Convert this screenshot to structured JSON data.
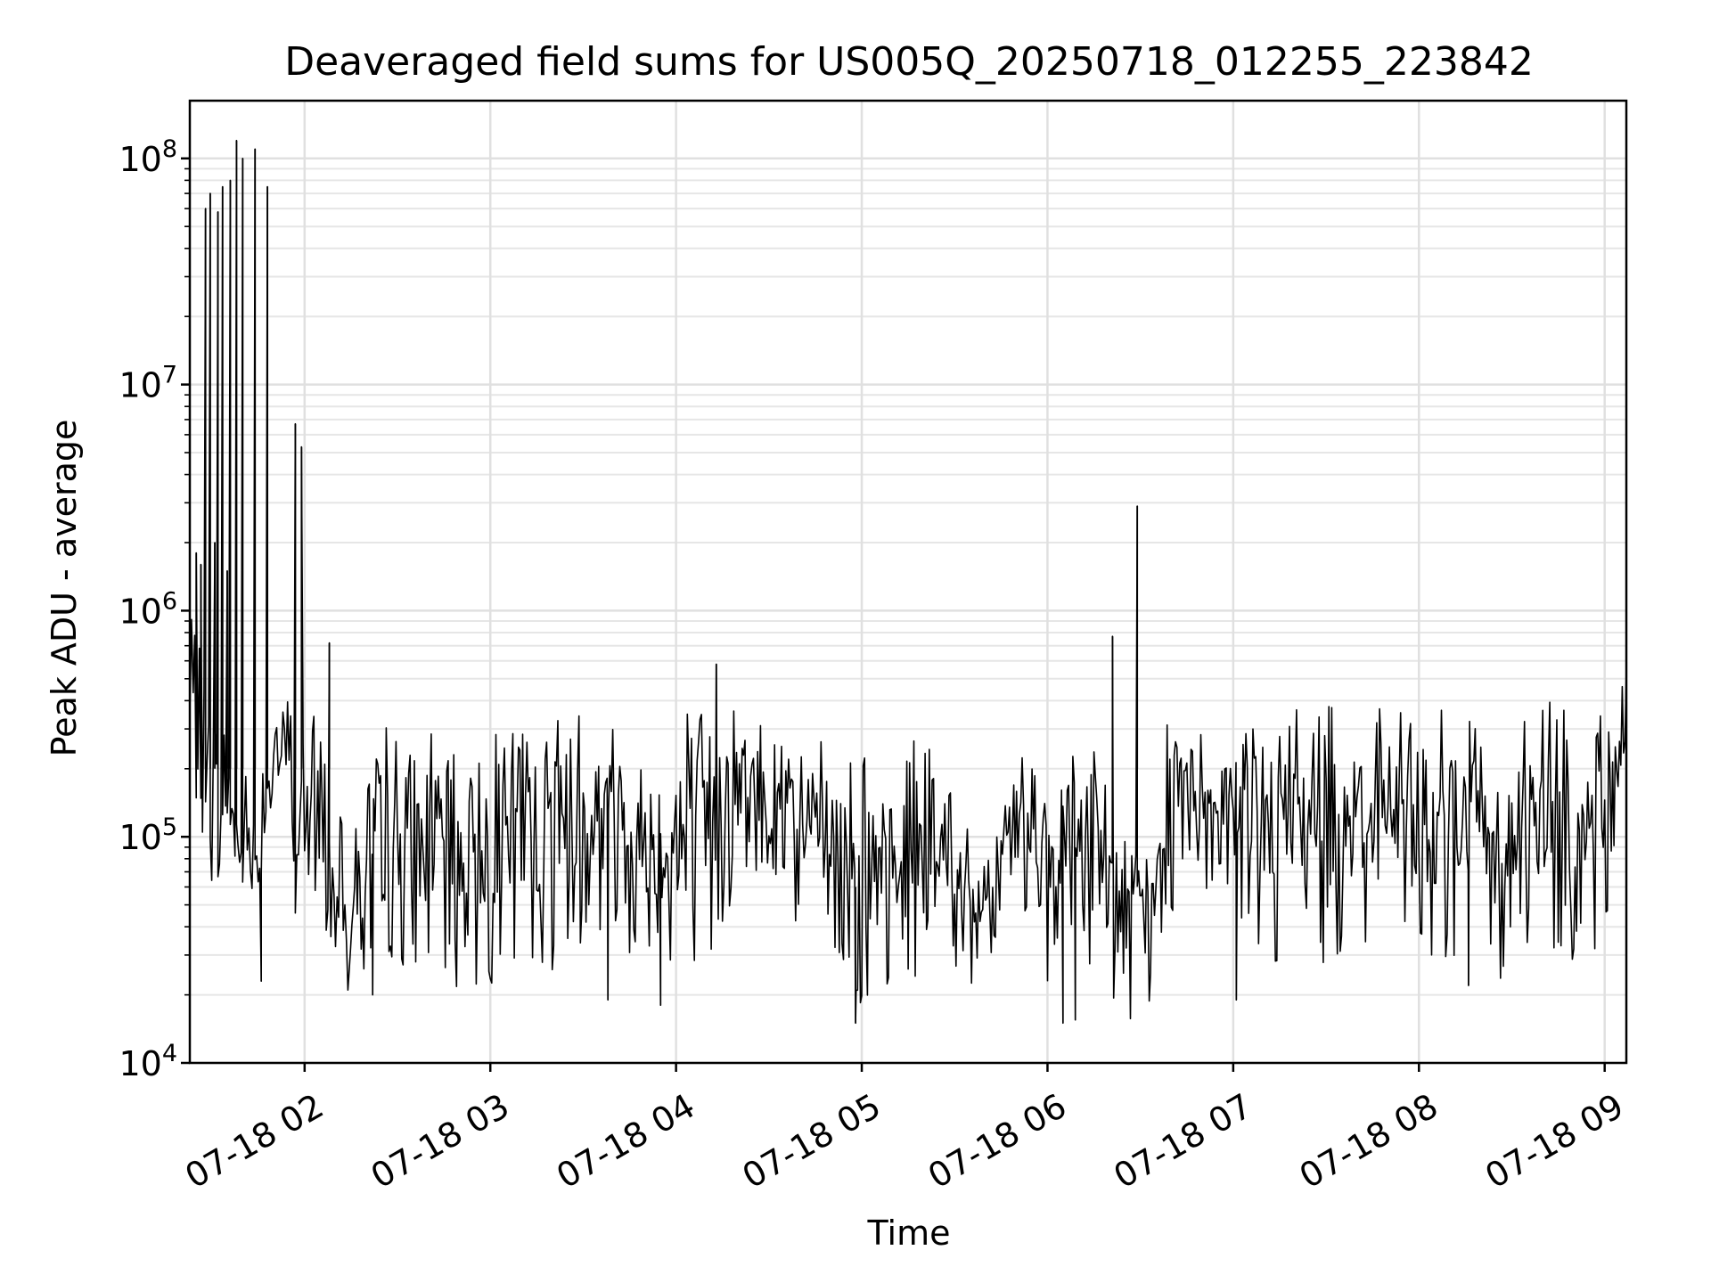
{
  "chart_data": {
    "type": "line",
    "title": "Deaveraged field sums for US005Q_20250718_012255_223842",
    "xlabel": "Time",
    "ylabel": "Peak ADU - average",
    "yscale": "log",
    "ylim": [
      10000,
      180000000
    ],
    "xlim": [
      "2025-07-18 01:22:55",
      "2025-07-18 09:07:00"
    ],
    "x_tick_labels": [
      "07-18 02",
      "07-18 03",
      "07-18 04",
      "07-18 05",
      "07-18 06",
      "07-18 07",
      "07-18 08",
      "07-18 09"
    ],
    "x_tick_times": [
      "2025-07-18 02:00",
      "2025-07-18 03:00",
      "2025-07-18 04:00",
      "2025-07-18 05:00",
      "2025-07-18 06:00",
      "2025-07-18 07:00",
      "2025-07-18 08:00",
      "2025-07-18 09:00"
    ],
    "y_tick_labels": [
      "10^4",
      "10^5",
      "10^6",
      "10^7",
      "10^8"
    ],
    "y_tick_values": [
      10000,
      100000,
      1000000,
      10000000,
      100000000
    ],
    "grid": true,
    "line_color": "#000000",
    "series": [
      {
        "x": [
          "2025-07-18 01:22:55",
          "2025-07-18 01:24:00",
          "2025-07-18 01:26:00",
          "2025-07-18 01:28:00",
          "2025-07-18 01:29:30",
          "2025-07-18 01:31:00",
          "2025-07-18 01:32:30",
          "2025-07-18 01:34:00",
          "2025-07-18 01:35:30",
          "2025-07-18 01:37:00",
          "2025-07-18 01:38:30",
          "2025-07-18 01:40:00",
          "2025-07-18 01:41:00",
          "2025-07-18 01:43:00",
          "2025-07-18 01:45:00",
          "2025-07-18 01:47:00",
          "2025-07-18 01:49:00",
          "2025-07-18 01:51:00",
          "2025-07-18 01:53:00",
          "2025-07-18 01:55:00",
          "2025-07-18 01:56:00",
          "2025-07-18 01:57:00",
          "2025-07-18 01:58:00",
          "2025-07-18 02:00:00",
          "2025-07-18 02:03:00",
          "2025-07-18 02:06:00",
          "2025-07-18 02:08:00",
          "2025-07-18 02:10:00",
          "2025-07-18 02:12:00",
          "2025-07-18 02:14:00",
          "2025-07-18 02:17:00",
          "2025-07-18 02:20:00",
          "2025-07-18 02:25:00",
          "2025-07-18 02:30:00",
          "2025-07-18 02:35:00",
          "2025-07-18 02:40:00",
          "2025-07-18 02:45:00",
          "2025-07-18 02:50:00",
          "2025-07-18 02:55:00",
          "2025-07-18 03:00:00",
          "2025-07-18 03:05:00",
          "2025-07-18 03:10:00",
          "2025-07-18 03:15:00",
          "2025-07-18 03:20:00",
          "2025-07-18 03:25:00",
          "2025-07-18 03:30:00",
          "2025-07-18 03:35:00",
          "2025-07-18 03:40:00",
          "2025-07-18 03:45:00",
          "2025-07-18 03:50:00",
          "2025-07-18 03:55:00",
          "2025-07-18 04:00:00",
          "2025-07-18 04:05:00",
          "2025-07-18 04:10:00",
          "2025-07-18 04:15:00",
          "2025-07-18 04:20:00",
          "2025-07-18 04:25:00",
          "2025-07-18 04:30:00",
          "2025-07-18 04:35:00",
          "2025-07-18 04:40:00",
          "2025-07-18 04:45:00",
          "2025-07-18 04:50:00",
          "2025-07-18 04:55:00",
          "2025-07-18 05:00:00",
          "2025-07-18 05:05:00",
          "2025-07-18 05:10:00",
          "2025-07-18 05:15:00",
          "2025-07-18 05:20:00",
          "2025-07-18 05:25:00",
          "2025-07-18 05:30:00",
          "2025-07-18 05:35:00",
          "2025-07-18 05:40:00",
          "2025-07-18 05:45:00",
          "2025-07-18 05:50:00",
          "2025-07-18 05:55:00",
          "2025-07-18 06:00:00",
          "2025-07-18 06:05:00",
          "2025-07-18 06:10:00",
          "2025-07-18 06:15:00",
          "2025-07-18 06:20:00",
          "2025-07-18 06:25:00",
          "2025-07-18 06:29:00",
          "2025-07-18 06:32:00",
          "2025-07-18 06:35:00",
          "2025-07-18 06:40:00",
          "2025-07-18 06:45:00",
          "2025-07-18 06:50:00",
          "2025-07-18 06:55:00",
          "2025-07-18 07:00:00",
          "2025-07-18 07:05:00",
          "2025-07-18 07:10:00",
          "2025-07-18 07:15:00",
          "2025-07-18 07:20:00",
          "2025-07-18 07:25:00",
          "2025-07-18 07:30:00",
          "2025-07-18 07:35:00",
          "2025-07-18 07:40:00",
          "2025-07-18 07:45:00",
          "2025-07-18 07:50:00",
          "2025-07-18 07:55:00",
          "2025-07-18 08:00:00",
          "2025-07-18 08:05:00",
          "2025-07-18 08:10:00",
          "2025-07-18 08:15:00",
          "2025-07-18 08:20:00",
          "2025-07-18 08:25:00",
          "2025-07-18 08:30:00",
          "2025-07-18 08:35:00",
          "2025-07-18 08:40:00",
          "2025-07-18 08:45:00",
          "2025-07-18 08:50:00",
          "2025-07-18 08:55:00",
          "2025-07-18 09:00:00",
          "2025-07-18 09:03:00",
          "2025-07-18 09:07:00"
        ],
        "low": [
          90000,
          80000,
          75000,
          70000,
          65000,
          60000,
          55000,
          50000,
          50000,
          48000,
          45000,
          45000,
          40000,
          35000,
          25000,
          60000,
          120000,
          110000,
          100000,
          40000,
          35000,
          30000,
          30000,
          45000,
          40000,
          38000,
          32000,
          25000,
          22000,
          21000,
          22000,
          22000,
          23000,
          24000,
          25000,
          24000,
          22000,
          21000,
          21000,
          22000,
          23000,
          24000,
          25000,
          25000,
          27000,
          30000,
          35000,
          40000,
          30000,
          25000,
          22000,
          20000,
          20000,
          25000,
          40000,
          60000,
          70000,
          50000,
          40000,
          30000,
          28000,
          25000,
          22000,
          18000,
          16000,
          18000,
          20000,
          30000,
          40000,
          25000,
          20000,
          25000,
          40000,
          60000,
          30000,
          20000,
          25000,
          40000,
          20000,
          16000,
          15000,
          16000,
          18000,
          20000,
          40000,
          80000,
          60000,
          50000,
          40000,
          40000,
          30000,
          25000,
          30000,
          25000,
          26000,
          28000,
          30000,
          28000,
          30000,
          28000,
          27000,
          28000,
          30000,
          28000,
          25000,
          22000,
          25000,
          30000,
          30000,
          30000,
          26000,
          28000,
          35000,
          80000,
          150000
        ],
        "high": [
          1800000,
          1600000,
          700000,
          600000,
          500000,
          400000,
          380000,
          350000,
          300000,
          250000,
          220000,
          220000,
          200000,
          200000,
          200000,
          250000,
          350000,
          400000,
          450000,
          500000,
          600000,
          400000,
          300000,
          280000,
          600000,
          250000,
          200000,
          150000,
          120000,
          100000,
          150000,
          200000,
          300000,
          320000,
          300000,
          300000,
          310000,
          300000,
          300000,
          300000,
          320000,
          350000,
          380000,
          400000,
          400000,
          400000,
          350000,
          350000,
          350000,
          350000,
          350000,
          350000,
          360000,
          380000,
          420000,
          380000,
          350000,
          400000,
          480000,
          360000,
          300000,
          280000,
          250000,
          230000,
          200000,
          180000,
          250000,
          400000,
          200000,
          150000,
          120000,
          100000,
          200000,
          250000,
          200000,
          230000,
          250000,
          280000,
          280000,
          200000,
          120000,
          100000,
          90000,
          120000,
          480000,
          350000,
          300000,
          300000,
          350000,
          380000,
          350000,
          350000,
          380000,
          380000,
          400000,
          400000,
          410000,
          410000,
          400000,
          380000,
          370000,
          380000,
          390000,
          390000,
          380000,
          350000,
          360000,
          380000,
          400000,
          400000,
          380000,
          360000,
          350000,
          400000,
          550000
        ],
        "spikes": [
          {
            "x": "2025-07-18 01:25:00",
            "y": 1800000
          },
          {
            "x": "2025-07-18 01:26:30",
            "y": 1600000
          },
          {
            "x": "2025-07-18 01:28:00",
            "y": 60000000
          },
          {
            "x": "2025-07-18 01:29:30",
            "y": 70000000
          },
          {
            "x": "2025-07-18 01:31:00",
            "y": 2000000
          },
          {
            "x": "2025-07-18 01:32:00",
            "y": 58000000
          },
          {
            "x": "2025-07-18 01:33:30",
            "y": 75000000
          },
          {
            "x": "2025-07-18 01:35:00",
            "y": 1500000
          },
          {
            "x": "2025-07-18 01:36:00",
            "y": 80000000
          },
          {
            "x": "2025-07-18 01:38:00",
            "y": 120000000
          },
          {
            "x": "2025-07-18 01:40:00",
            "y": 100000000
          },
          {
            "x": "2025-07-18 01:44:00",
            "y": 110000000
          },
          {
            "x": "2025-07-18 01:48:00",
            "y": 75000000
          },
          {
            "x": "2025-07-18 01:57:00",
            "y": 6700000
          },
          {
            "x": "2025-07-18 01:59:00",
            "y": 5300000
          },
          {
            "x": "2025-07-18 02:08:00",
            "y": 720000
          },
          {
            "x": "2025-07-18 04:13:00",
            "y": 580000
          },
          {
            "x": "2025-07-18 06:21:00",
            "y": 770000
          },
          {
            "x": "2025-07-18 06:29:00",
            "y": 2900000
          }
        ],
        "dips": [
          {
            "x": "2025-07-18 01:46:00",
            "y": 23000
          },
          {
            "x": "2025-07-18 02:22:00",
            "y": 20000
          },
          {
            "x": "2025-07-18 03:38:00",
            "y": 19000
          },
          {
            "x": "2025-07-18 03:55:00",
            "y": 18000
          },
          {
            "x": "2025-07-18 04:58:00",
            "y": 15000
          },
          {
            "x": "2025-07-18 06:05:00",
            "y": 15000
          },
          {
            "x": "2025-07-18 06:09:00",
            "y": 15500
          },
          {
            "x": "2025-07-18 07:01:00",
            "y": 19000
          },
          {
            "x": "2025-07-18 08:16:00",
            "y": 22000
          }
        ]
      }
    ]
  }
}
